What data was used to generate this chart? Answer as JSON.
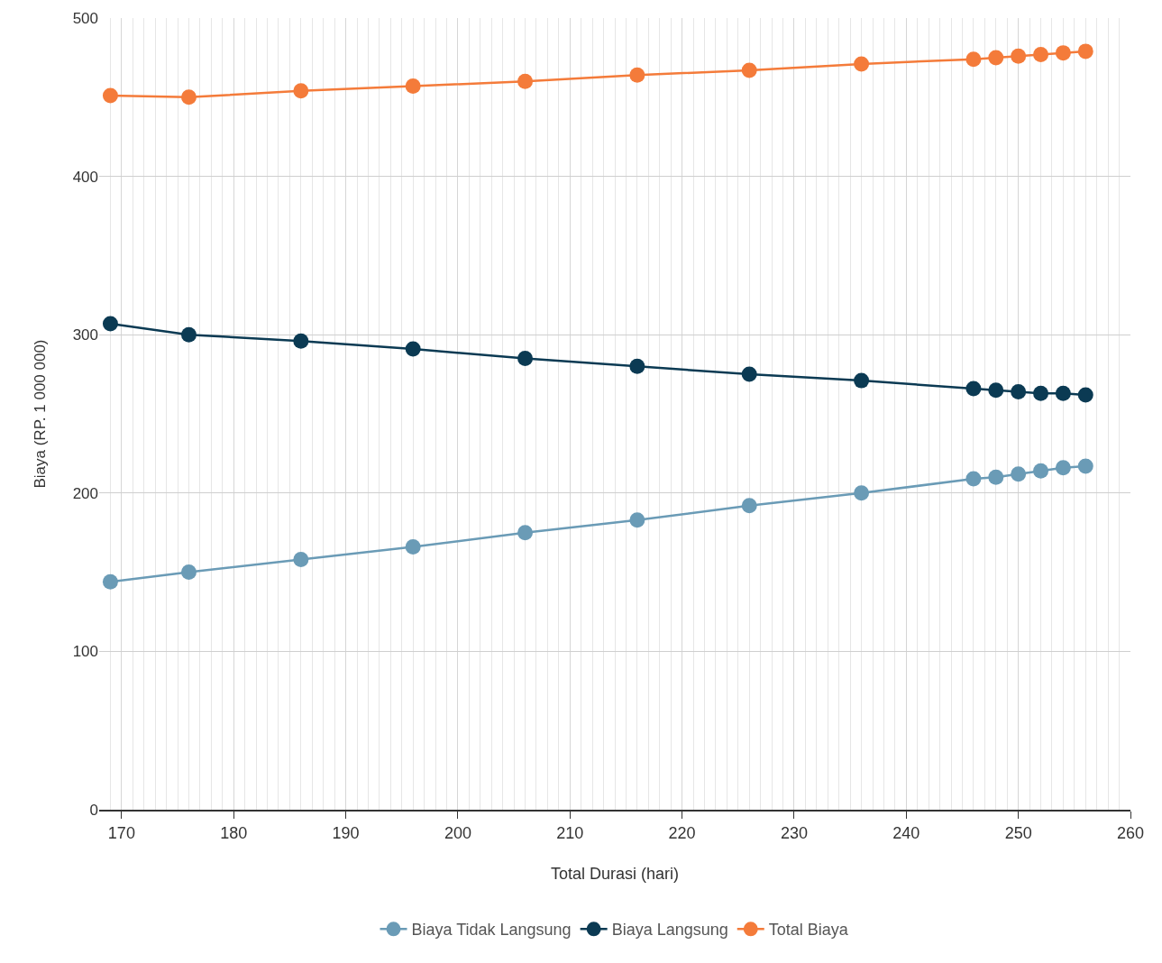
{
  "chart_data": {
    "type": "line",
    "xlabel": "Total Durasi (hari)",
    "ylabel": "Biaya (RP. 1 000 000)",
    "x": [
      169,
      176,
      186,
      196,
      206,
      216,
      226,
      236,
      246,
      248,
      250,
      252,
      254,
      256
    ],
    "series": [
      {
        "name": "Biaya Tidak Langsung",
        "color": "#6a9bb6",
        "values": [
          144,
          150,
          158,
          166,
          175,
          183,
          192,
          200,
          209,
          210,
          212,
          214,
          216,
          217
        ]
      },
      {
        "name": "Biaya Langsung",
        "color": "#0b3a53",
        "values": [
          307,
          300,
          296,
          291,
          285,
          280,
          275,
          271,
          266,
          265,
          264,
          263,
          263,
          262
        ]
      },
      {
        "name": "Total Biaya",
        "color": "#f47b3a",
        "values": [
          451,
          450,
          454,
          457,
          460,
          464,
          467,
          471,
          474,
          475,
          476,
          477,
          478,
          479
        ]
      }
    ],
    "xlim": [
      168,
      260
    ],
    "xticks": [
      170,
      180,
      190,
      200,
      210,
      220,
      230,
      240,
      250,
      260
    ],
    "ylim": [
      0,
      500
    ],
    "yticks": [
      0,
      100,
      200,
      300,
      400,
      500
    ],
    "grid": true,
    "legend": "bottom",
    "marker": "circle",
    "line_style": "solid"
  }
}
